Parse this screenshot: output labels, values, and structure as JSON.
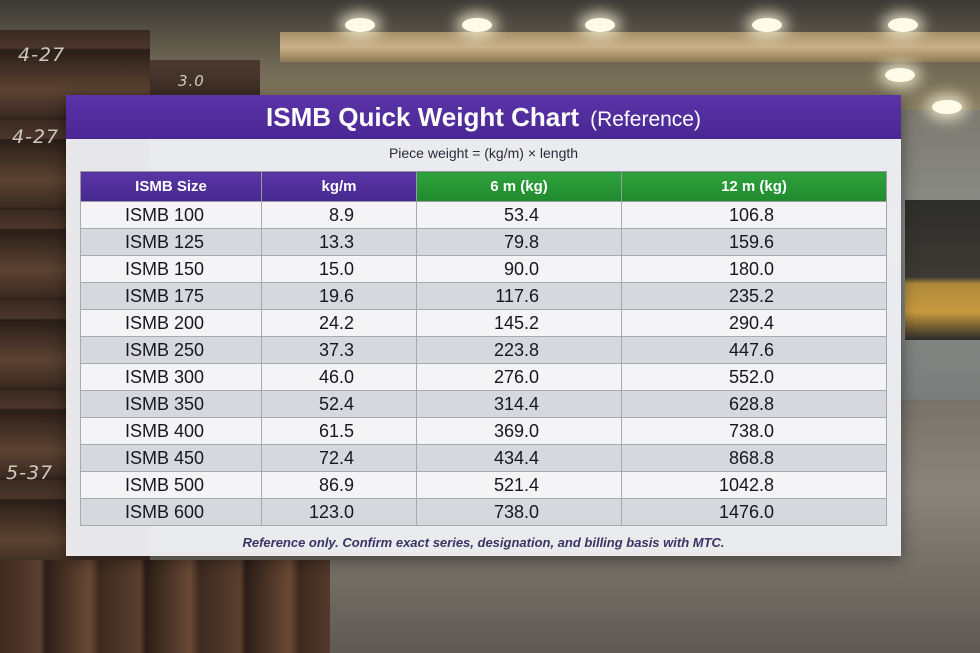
{
  "chart_data": {
    "type": "table",
    "title": "ISMB Quick Weight Chart",
    "subtitle": "(Reference)",
    "formula": "Piece weight = (kg/m) × length",
    "columns": [
      "ISMB Size",
      "kg/m",
      "6 m (kg)",
      "12 m (kg)"
    ],
    "header_colors": [
      "#4a2793",
      "#4a2793",
      "#1f8a2d",
      "#1f8a2d"
    ],
    "rows": [
      [
        "ISMB 100",
        "8.9",
        "53.4",
        "106.8"
      ],
      [
        "ISMB 125",
        "13.3",
        "79.8",
        "159.6"
      ],
      [
        "ISMB 150",
        "15.0",
        "90.0",
        "180.0"
      ],
      [
        "ISMB 175",
        "19.6",
        "117.6",
        "235.2"
      ],
      [
        "ISMB 200",
        "24.2",
        "145.2",
        "290.4"
      ],
      [
        "ISMB 250",
        "37.3",
        "223.8",
        "447.6"
      ],
      [
        "ISMB 300",
        "46.0",
        "276.0",
        "552.0"
      ],
      [
        "ISMB 350",
        "52.4",
        "314.4",
        "628.8"
      ],
      [
        "ISMB 400",
        "61.5",
        "369.0",
        "738.0"
      ],
      [
        "ISMB 450",
        "72.4",
        "434.4",
        "868.8"
      ],
      [
        "ISMB 500",
        "86.9",
        "521.4",
        "1042.8"
      ],
      [
        "ISMB 600",
        "123.0",
        "738.0",
        "1476.0"
      ]
    ],
    "footnote": "Reference only. Confirm exact series, designation, and billing basis with MTC."
  },
  "background": {
    "chalk_marks": [
      "4-27",
      "3.0",
      "4-27",
      "5-37"
    ]
  },
  "colors": {
    "title_bar": "#4a2793",
    "header_green": "#1f8a2d",
    "row_light": "#f4f4f7",
    "row_dark": "#d7d8de"
  }
}
